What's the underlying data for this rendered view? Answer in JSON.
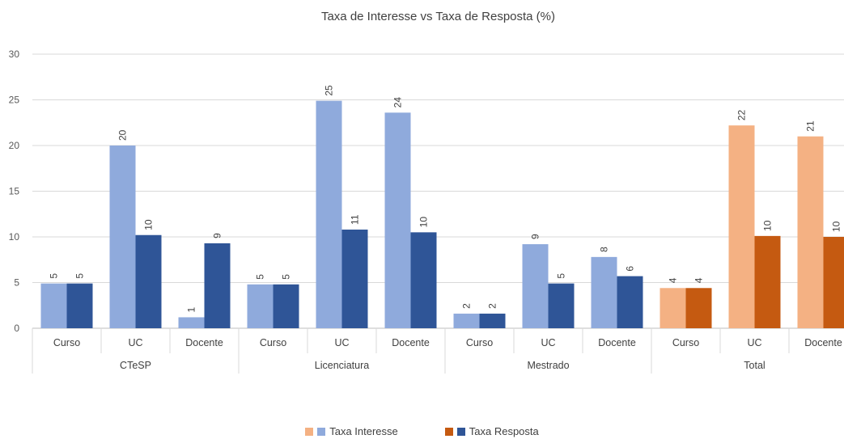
{
  "chart_data": {
    "type": "bar",
    "title": "Taxa de Interesse vs Taxa de Resposta (%)",
    "xlabel": "",
    "ylabel": "",
    "ylim": [
      0,
      30
    ],
    "yticks": [
      0,
      5,
      10,
      15,
      20,
      25,
      30
    ],
    "grid": true,
    "legend_position": "bottom",
    "groups": [
      {
        "name": "CTeSP",
        "categories": [
          "Curso",
          "UC",
          "Docente"
        ],
        "interesse": [
          5,
          20,
          1
        ],
        "resposta": [
          5,
          10,
          9
        ],
        "interesse_values": [
          4.9,
          20.0,
          1.2
        ],
        "resposta_values": [
          4.9,
          10.2,
          9.3
        ],
        "colors": {
          "interesse": "#8FAADC",
          "resposta": "#2F5597"
        }
      },
      {
        "name": "Licenciatura",
        "categories": [
          "Curso",
          "UC",
          "Docente"
        ],
        "interesse": [
          5,
          25,
          24
        ],
        "resposta": [
          5,
          11,
          10
        ],
        "interesse_values": [
          4.8,
          24.9,
          23.6
        ],
        "resposta_values": [
          4.8,
          10.8,
          10.5
        ],
        "colors": {
          "interesse": "#8FAADC",
          "resposta": "#2F5597"
        }
      },
      {
        "name": "Mestrado",
        "categories": [
          "Curso",
          "UC",
          "Docente"
        ],
        "interesse": [
          2,
          9,
          8
        ],
        "resposta": [
          2,
          5,
          6
        ],
        "interesse_values": [
          1.6,
          9.2,
          7.8
        ],
        "resposta_values": [
          1.6,
          4.9,
          5.7
        ],
        "colors": {
          "interesse": "#8FAADC",
          "resposta": "#2F5597"
        }
      },
      {
        "name": "Total",
        "categories": [
          "Curso",
          "UC",
          "Docente"
        ],
        "interesse": [
          4,
          22,
          21
        ],
        "resposta": [
          4,
          10,
          10
        ],
        "interesse_values": [
          4.4,
          22.2,
          21.0
        ],
        "resposta_values": [
          4.4,
          10.1,
          10.0
        ],
        "colors": {
          "interesse": "#F4B183",
          "resposta": "#C55A11"
        }
      }
    ],
    "series": [
      {
        "name": "Taxa Interesse"
      },
      {
        "name": "Taxa Resposta"
      }
    ]
  }
}
